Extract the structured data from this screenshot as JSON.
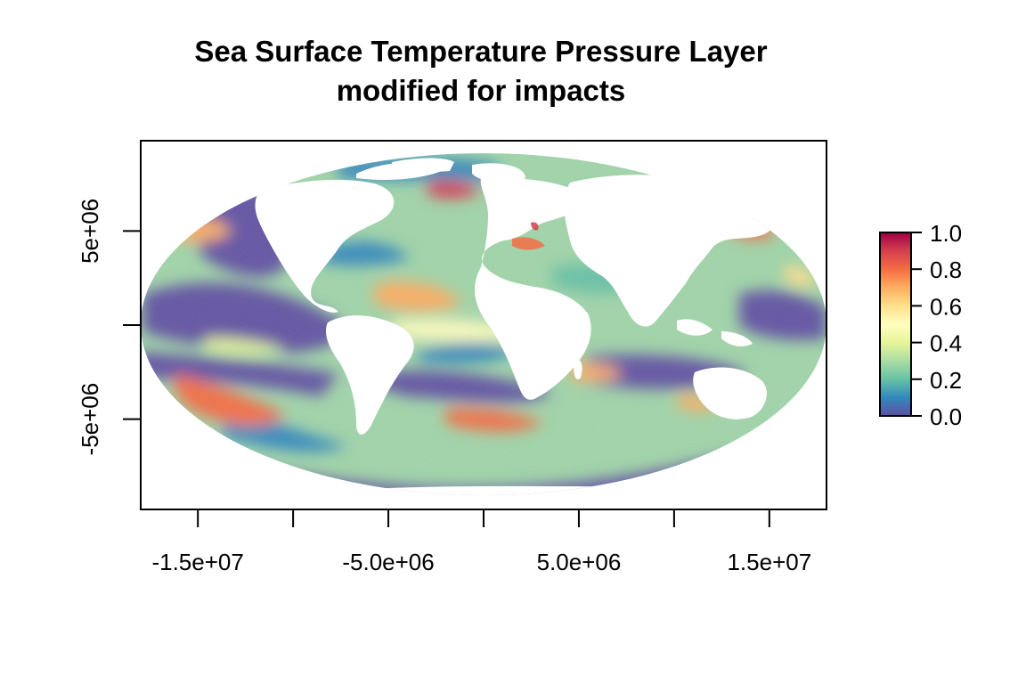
{
  "map": {
    "title_line1": "Sea Surface Temperature Pressure Layer",
    "title_line2": "modified for impacts",
    "x_ticks": [
      {
        "value": -15000000,
        "label": "-1.5e+07"
      },
      {
        "value": -10000000,
        "label": ""
      },
      {
        "value": -5000000,
        "label": "-5.0e+06"
      },
      {
        "value": 0,
        "label": ""
      },
      {
        "value": 5000000,
        "label": "5.0e+06"
      },
      {
        "value": 10000000,
        "label": ""
      },
      {
        "value": 15000000,
        "label": "1.5e+07"
      }
    ],
    "y_ticks": [
      {
        "value": 5000000,
        "label": "5e+06"
      },
      {
        "value": 0,
        "label": ""
      },
      {
        "value": -5000000,
        "label": "-5e+06"
      }
    ],
    "x_range": [
      -18000000,
      18000000
    ],
    "y_range": [
      -9800000,
      9800000
    ],
    "projection": "Mollweide",
    "palette": [
      "#5E4FA2",
      "#3288BD",
      "#66C2A5",
      "#ABDDA4",
      "#E6F598",
      "#FFFFBF",
      "#FEE08B",
      "#FDAE61",
      "#F46D43",
      "#D53E4F",
      "#9E0142"
    ],
    "land_color": "#FFFFFF",
    "legend": {
      "min": 0.0,
      "max": 1.0,
      "labels": [
        "0.0",
        "0.2",
        "0.4",
        "0.6",
        "0.8",
        "1.0"
      ]
    }
  }
}
